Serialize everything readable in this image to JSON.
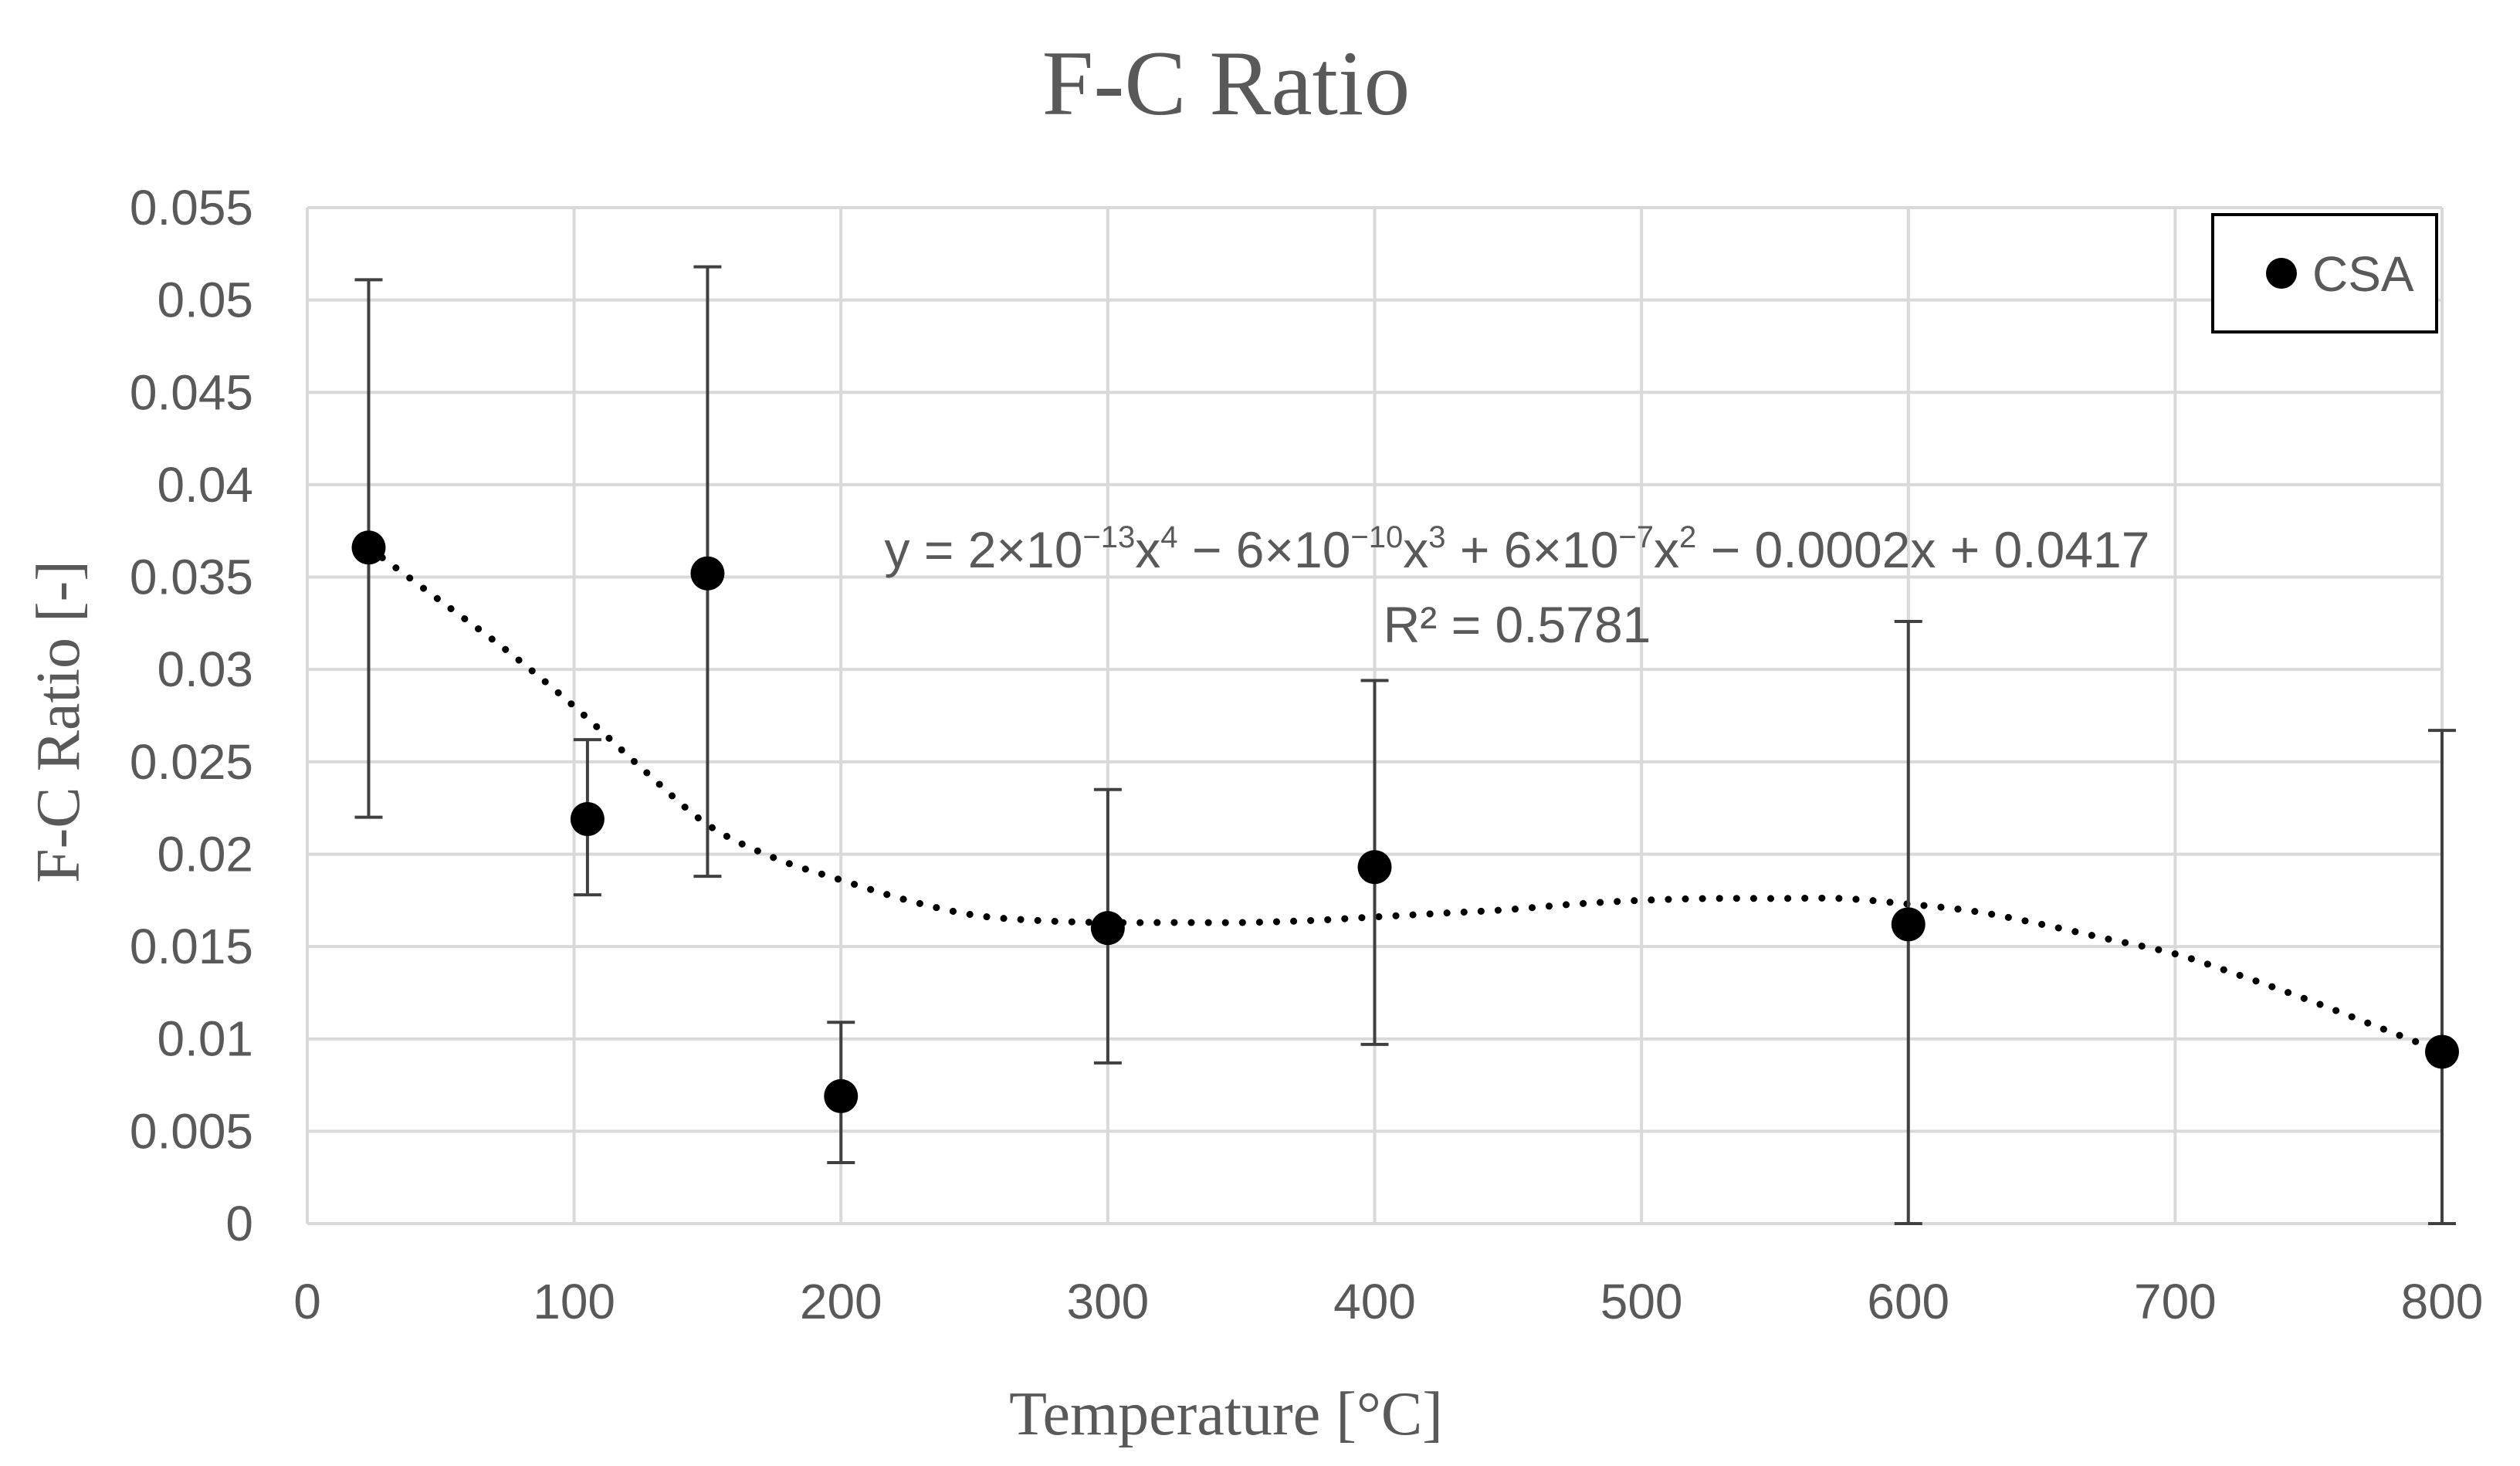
{
  "chart_data": {
    "type": "scatter",
    "title": "F-C Ratio",
    "xlabel": "Temperature [°C]",
    "ylabel": "F-C Ratio [-]",
    "xlim": [
      0,
      800
    ],
    "ylim": [
      0,
      0.055
    ],
    "x_ticks": [
      0,
      100,
      200,
      300,
      400,
      500,
      600,
      700,
      800
    ],
    "y_ticks": [
      0,
      0.005,
      0.01,
      0.015,
      0.02,
      0.025,
      0.03,
      0.035,
      0.04,
      0.045,
      0.05,
      0.055
    ],
    "x_tick_labels": [
      "0",
      "100",
      "200",
      "300",
      "400",
      "500",
      "600",
      "700",
      "800"
    ],
    "y_tick_labels": [
      "0",
      "0.005",
      "0.01",
      "0.015",
      "0.02",
      "0.025",
      "0.03",
      "0.035",
      "0.04",
      "0.045",
      "0.05",
      "0.055"
    ],
    "grid": true,
    "legend": {
      "position": "top-right",
      "entries": [
        "CSA"
      ]
    },
    "series": [
      {
        "name": "CSA",
        "color": "#000000",
        "points": [
          {
            "x": 23,
            "y": 0.0366,
            "err_low": 0.022,
            "err_high": 0.0511
          },
          {
            "x": 105,
            "y": 0.0219,
            "err_low": 0.0178,
            "err_high": 0.0262
          },
          {
            "x": 150,
            "y": 0.0352,
            "err_low": 0.0188,
            "err_high": 0.0518
          },
          {
            "x": 200,
            "y": 0.0069,
            "err_low": 0.0033,
            "err_high": 0.0109
          },
          {
            "x": 300,
            "y": 0.016,
            "err_low": 0.0087,
            "err_high": 0.0235
          },
          {
            "x": 400,
            "y": 0.0193,
            "err_low": 0.0097,
            "err_high": 0.0294
          },
          {
            "x": 600,
            "y": 0.0162,
            "err_low": 0.0,
            "err_high": 0.0326
          },
          {
            "x": 800,
            "y": 0.0093,
            "err_low": 0.0,
            "err_high": 0.0267
          }
        ]
      }
    ],
    "trendline": {
      "type": "polynomial",
      "order": 4,
      "style": "dotted",
      "color": "#000000",
      "equation_parts": {
        "prefix": "y = 2×10",
        "exp1": "−13",
        "mid1": "x",
        "pow1": "4",
        "mid2": " − 6×10",
        "exp2": "−10",
        "mid3": "x",
        "pow2": "3",
        "mid4": " + 6×10",
        "exp3": "−7",
        "mid5": "x",
        "pow3": "2",
        "suffix": " − 0.0002x + 0.0417"
      },
      "r_squared": "R² = 0.5781",
      "curve": {
        "x": [
          23,
          50,
          75,
          100,
          125,
          150,
          175,
          200,
          225,
          250,
          275,
          300,
          325,
          350,
          375,
          400,
          425,
          450,
          475,
          500,
          525,
          550,
          575,
          600,
          625,
          650,
          675,
          700,
          725,
          750,
          775,
          800
        ],
        "y": [
          0.0366,
          0.0337,
          0.031,
          0.028,
          0.0247,
          0.0216,
          0.0198,
          0.0186,
          0.0175,
          0.0167,
          0.0164,
          0.0163,
          0.0163,
          0.0163,
          0.0164,
          0.0166,
          0.0168,
          0.017,
          0.0173,
          0.0175,
          0.0176,
          0.0176,
          0.0176,
          0.0173,
          0.0169,
          0.0162,
          0.0154,
          0.0146,
          0.0134,
          0.0121,
          0.0107,
          0.0093
        ]
      }
    }
  }
}
